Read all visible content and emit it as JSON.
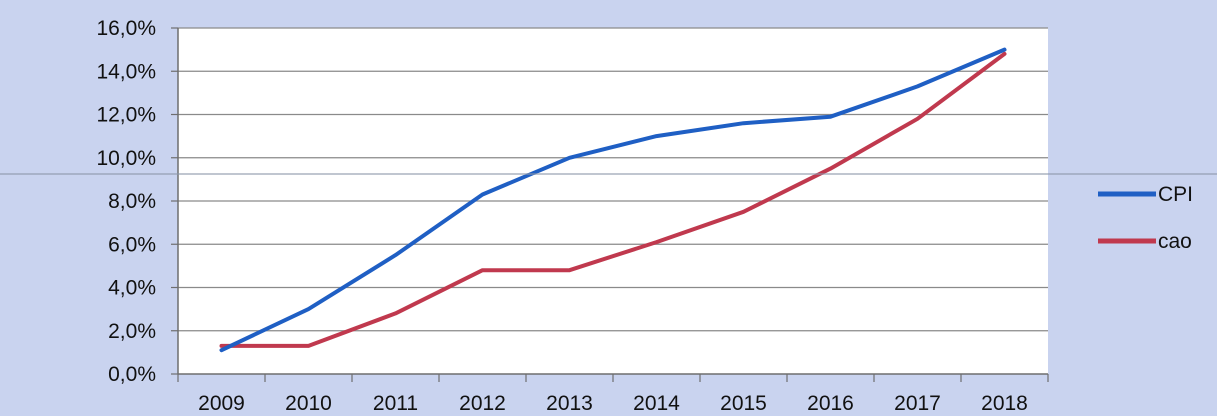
{
  "chart_data": {
    "type": "line",
    "title": "",
    "xlabel": "",
    "ylabel": "",
    "categories": [
      "2009",
      "2010",
      "2011",
      "2012",
      "2013",
      "2014",
      "2015",
      "2016",
      "2017",
      "2018"
    ],
    "ylim": [
      0,
      16
    ],
    "yticks": [
      0,
      2,
      4,
      6,
      8,
      10,
      12,
      14,
      16
    ],
    "ytick_labels": [
      "0,0%",
      "2,0%",
      "4,0%",
      "6,0%",
      "8,0%",
      "10,0%",
      "12,0%",
      "14,0%",
      "16,0%"
    ],
    "grid": true,
    "legend_position": "right",
    "series": [
      {
        "name": "CPI",
        "color": "#1f5fc4",
        "values": [
          1.1,
          3.0,
          5.5,
          8.3,
          10.0,
          11.0,
          11.6,
          11.9,
          13.3,
          15.0
        ]
      },
      {
        "name": "cao",
        "color": "#c0394e",
        "values": [
          1.3,
          1.3,
          2.8,
          4.8,
          4.8,
          6.1,
          7.5,
          9.5,
          11.8,
          14.8
        ]
      }
    ]
  }
}
